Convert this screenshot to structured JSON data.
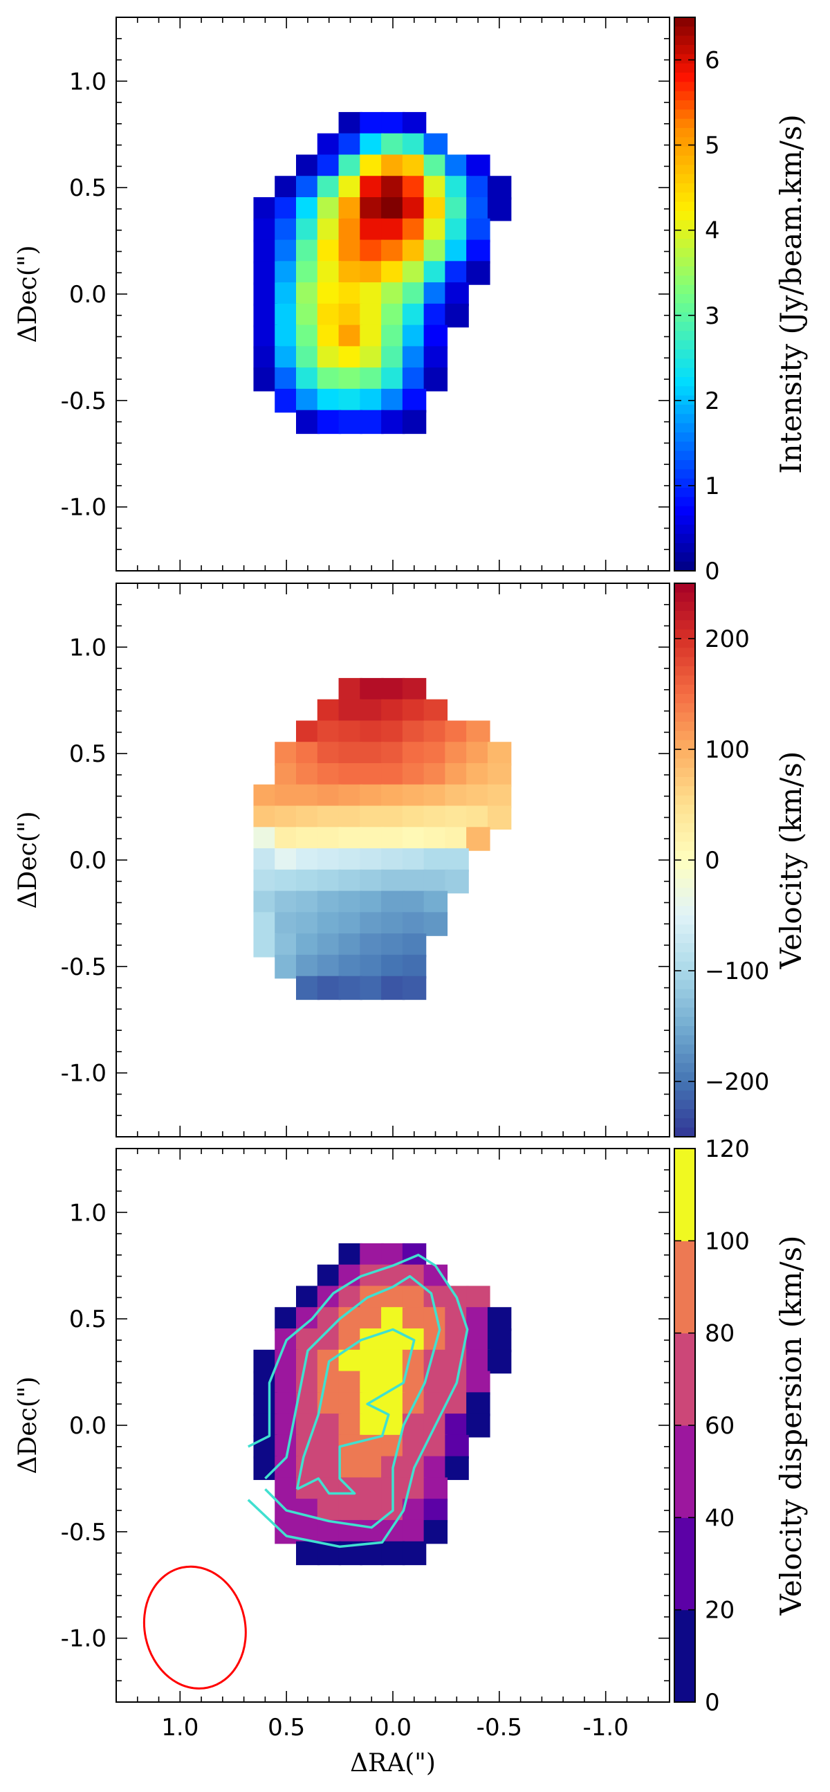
{
  "chart_data": {
    "type": "heatmap",
    "shared_x_axis": {
      "label": "ΔRA(\")",
      "xlim": [
        1.3,
        -1.3
      ],
      "ticks": [
        1.0,
        0.5,
        0.0,
        -0.5,
        -1.0
      ],
      "tick_labels": [
        "1.0",
        "0.5",
        "0.0",
        "-0.5",
        "-1.0"
      ]
    },
    "pixel_grid": {
      "columns_ra": [
        0.6,
        0.5,
        0.4,
        0.3,
        0.2,
        0.1,
        0.0,
        -0.1,
        -0.2,
        -0.3,
        -0.4,
        -0.5
      ],
      "rows_dec": [
        0.8,
        0.7,
        0.6,
        0.5,
        0.4,
        0.3,
        0.2,
        0.1,
        0.0,
        -0.1,
        -0.2,
        -0.3,
        -0.4,
        -0.5,
        -0.6,
        -0.7
      ],
      "cell_size_arcsec": 0.11
    },
    "panels": [
      {
        "name": "intensity",
        "ylabel": "ΔDec(\")",
        "ylim": [
          -1.3,
          1.3
        ],
        "yticks": [
          1.0,
          0.5,
          0.0,
          -0.5,
          -1.0
        ],
        "ytick_labels": [
          "1.0",
          "0.5",
          "0.0",
          "-0.5",
          "-1.0"
        ],
        "colorbar_label": "Intensity (Jy/beam.km/s)",
        "vmin": 0,
        "vmax": 6.5,
        "colorbar_ticks": [
          0,
          1,
          2,
          3,
          4,
          5,
          6
        ],
        "colorbar_tick_labels": [
          "0",
          "1",
          "2",
          "3",
          "4",
          "5",
          "6"
        ],
        "colormap": "jet",
        "values": [
          [
            null,
            null,
            null,
            null,
            0.3,
            0.8,
            0.8,
            0.5,
            null,
            null,
            null,
            null
          ],
          [
            null,
            null,
            null,
            0.5,
            1.1,
            2.2,
            2.9,
            2.6,
            1.4,
            null,
            null,
            null
          ],
          [
            null,
            null,
            0.3,
            1.0,
            2.8,
            4.3,
            4.9,
            4.6,
            3.0,
            1.5,
            0.6,
            null
          ],
          [
            null,
            0.3,
            1.3,
            2.8,
            4.1,
            5.9,
            6.3,
            5.6,
            4.0,
            2.5,
            1.2,
            0.3
          ],
          [
            0.4,
            1.0,
            2.2,
            3.7,
            5.0,
            6.3,
            6.5,
            6.0,
            4.5,
            2.8,
            1.3,
            0.3
          ],
          [
            0.5,
            1.3,
            2.6,
            4.0,
            5.2,
            5.9,
            5.9,
            5.4,
            4.0,
            2.5,
            1.2,
            null
          ],
          [
            0.5,
            1.5,
            3.0,
            4.3,
            5.2,
            5.5,
            5.3,
            4.7,
            3.5,
            2.1,
            0.8,
            null
          ],
          [
            0.5,
            1.8,
            3.2,
            4.1,
            4.8,
            4.9,
            4.4,
            3.7,
            2.5,
            1.0,
            0.3,
            null
          ],
          [
            0.5,
            2.0,
            3.5,
            4.2,
            4.4,
            4.1,
            3.6,
            3.0,
            1.5,
            0.5,
            null,
            null
          ],
          [
            0.5,
            2.1,
            3.4,
            4.4,
            4.6,
            4.1,
            3.3,
            2.4,
            0.9,
            0.3,
            null,
            null
          ],
          [
            0.5,
            2.1,
            3.2,
            4.3,
            5.0,
            4.1,
            3.1,
            2.0,
            0.7,
            null,
            null,
            null
          ],
          [
            0.4,
            1.9,
            3.0,
            4.0,
            4.2,
            3.9,
            2.9,
            1.6,
            0.5,
            null,
            null,
            null
          ],
          [
            0.3,
            1.4,
            2.5,
            3.2,
            3.3,
            3.1,
            2.5,
            1.3,
            0.3,
            null,
            null,
            null
          ],
          [
            null,
            0.9,
            1.7,
            2.2,
            2.3,
            2.1,
            1.6,
            0.8,
            null,
            null,
            null,
            null
          ],
          [
            null,
            null,
            0.4,
            0.8,
            0.9,
            0.9,
            0.5,
            0.3,
            null,
            null,
            null,
            null
          ],
          [
            null,
            null,
            null,
            null,
            null,
            null,
            null,
            null,
            null,
            null,
            null,
            null
          ]
        ]
      },
      {
        "name": "velocity",
        "ylabel": "ΔDec(\")",
        "ylim": [
          -1.3,
          1.3
        ],
        "yticks": [
          1.0,
          0.5,
          0.0,
          -0.5,
          -1.0
        ],
        "ytick_labels": [
          "1.0",
          "0.5",
          "0.0",
          "-0.5",
          "-1.0"
        ],
        "colorbar_label": "Velocity (km/s)",
        "vmin": -250,
        "vmax": 250,
        "colorbar_ticks": [
          200,
          100,
          0,
          -100,
          -200
        ],
        "colorbar_tick_labels": [
          "200",
          "100",
          "0",
          "−100",
          "−200"
        ],
        "colormap": "RdYlBu_r",
        "values": [
          [
            null,
            null,
            null,
            null,
            215,
            235,
            235,
            225,
            null,
            null,
            null,
            null
          ],
          [
            null,
            null,
            null,
            200,
            215,
            215,
            205,
            195,
            185,
            null,
            null,
            null
          ],
          [
            null,
            null,
            195,
            180,
            185,
            190,
            185,
            170,
            160,
            145,
            125,
            null
          ],
          [
            null,
            130,
            145,
            165,
            170,
            170,
            165,
            150,
            145,
            125,
            110,
            90
          ],
          [
            null,
            120,
            135,
            145,
            150,
            150,
            150,
            140,
            130,
            110,
            95,
            85
          ],
          [
            105,
            110,
            110,
            115,
            110,
            105,
            100,
            95,
            90,
            80,
            75,
            70
          ],
          [
            75,
            70,
            65,
            60,
            60,
            55,
            55,
            50,
            45,
            40,
            45,
            60
          ],
          [
            -30,
            25,
            20,
            20,
            15,
            15,
            15,
            10,
            15,
            20,
            90,
            null
          ],
          [
            -75,
            -45,
            -60,
            -65,
            -70,
            -75,
            -80,
            -85,
            -95,
            -95,
            null,
            null
          ],
          [
            -90,
            -95,
            -100,
            -105,
            -110,
            -115,
            -120,
            -120,
            -120,
            -115,
            null,
            null
          ],
          [
            -110,
            -125,
            -130,
            -140,
            -145,
            -150,
            -160,
            -160,
            -150,
            null,
            null,
            null
          ],
          [
            -95,
            -135,
            -140,
            -150,
            -155,
            -165,
            -170,
            -175,
            -170,
            null,
            null,
            null
          ],
          [
            -95,
            -130,
            -150,
            -160,
            -170,
            -180,
            -185,
            -190,
            null,
            null,
            null,
            null
          ],
          [
            null,
            -140,
            -165,
            -175,
            -185,
            -190,
            -200,
            -205,
            null,
            null,
            null,
            null
          ],
          [
            null,
            null,
            -210,
            -220,
            -215,
            -210,
            -225,
            -220,
            null,
            null,
            null,
            null
          ],
          [
            null,
            null,
            null,
            null,
            null,
            null,
            null,
            null,
            null,
            null,
            null,
            null
          ]
        ]
      },
      {
        "name": "velocity-dispersion",
        "ylabel": "ΔDec(\")",
        "ylim": [
          -1.3,
          1.3
        ],
        "yticks": [
          1.0,
          0.5,
          0.0,
          -0.5,
          -1.0
        ],
        "ytick_labels": [
          "1.0",
          "0.5",
          "0.0",
          "-0.5",
          "-1.0"
        ],
        "colorbar_label": "Velocity dispersion (km/s)",
        "vmin": 0,
        "vmax": 120,
        "colorbar_ticks": [
          0,
          20,
          40,
          60,
          80,
          100,
          120
        ],
        "colorbar_tick_labels": [
          "0",
          "20",
          "40",
          "60",
          "80",
          "100",
          "120"
        ],
        "colormap": "plasma (discrete, 6 levels)",
        "values": [
          [
            null,
            null,
            null,
            null,
            10,
            50,
            50,
            30,
            null,
            null,
            null,
            null
          ],
          [
            null,
            null,
            null,
            10,
            50,
            70,
            70,
            70,
            50,
            null,
            null,
            null
          ],
          [
            null,
            null,
            10,
            50,
            70,
            90,
            90,
            90,
            70,
            70,
            70,
            null
          ],
          [
            null,
            10,
            50,
            70,
            90,
            90,
            110,
            90,
            90,
            70,
            50,
            10
          ],
          [
            null,
            50,
            70,
            70,
            90,
            110,
            110,
            110,
            90,
            70,
            50,
            10
          ],
          [
            10,
            50,
            70,
            90,
            110,
            110,
            110,
            90,
            70,
            70,
            50,
            10
          ],
          [
            10,
            50,
            70,
            90,
            90,
            110,
            110,
            90,
            70,
            70,
            50,
            null
          ],
          [
            10,
            50,
            70,
            90,
            90,
            110,
            110,
            90,
            70,
            70,
            10,
            null
          ],
          [
            10,
            50,
            70,
            70,
            90,
            110,
            110,
            70,
            70,
            30,
            10,
            null
          ],
          [
            10,
            50,
            70,
            70,
            90,
            90,
            90,
            70,
            70,
            30,
            null,
            null
          ],
          [
            10,
            50,
            70,
            70,
            90,
            90,
            70,
            70,
            50,
            10,
            null,
            null
          ],
          [
            null,
            50,
            70,
            70,
            70,
            70,
            70,
            70,
            50,
            null,
            null,
            null
          ],
          [
            null,
            50,
            50,
            70,
            70,
            70,
            70,
            50,
            30,
            null,
            null,
            null
          ],
          [
            null,
            50,
            50,
            50,
            50,
            50,
            50,
            50,
            10,
            null,
            null,
            null
          ],
          [
            null,
            null,
            10,
            10,
            10,
            10,
            10,
            10,
            null,
            null,
            null,
            null
          ],
          [
            null,
            null,
            null,
            null,
            null,
            null,
            null,
            null,
            null,
            null,
            null,
            null
          ]
        ],
        "contours": [
          [
            [
              0.68,
              -0.1
            ],
            [
              0.58,
              -0.05
            ],
            [
              0.58,
              0.2
            ],
            [
              0.5,
              0.4
            ],
            [
              0.38,
              0.5
            ],
            [
              0.28,
              0.62
            ],
            [
              0.15,
              0.7
            ],
            [
              0.0,
              0.75
            ],
            [
              -0.12,
              0.8
            ],
            [
              -0.2,
              0.75
            ],
            [
              -0.3,
              0.6
            ],
            [
              -0.35,
              0.45
            ],
            [
              -0.3,
              0.2
            ],
            [
              -0.2,
              0.0
            ],
            [
              -0.1,
              -0.2
            ],
            [
              -0.05,
              -0.4
            ],
            [
              0.05,
              -0.55
            ],
            [
              0.25,
              -0.57
            ],
            [
              0.5,
              -0.52
            ],
            [
              0.68,
              -0.35
            ]
          ],
          [
            [
              0.6,
              -0.25
            ],
            [
              0.5,
              -0.15
            ],
            [
              0.45,
              0.1
            ],
            [
              0.4,
              0.35
            ],
            [
              0.25,
              0.5
            ],
            [
              0.12,
              0.6
            ],
            [
              0.0,
              0.65
            ],
            [
              -0.08,
              0.7
            ],
            [
              -0.18,
              0.62
            ],
            [
              -0.22,
              0.45
            ],
            [
              -0.15,
              0.2
            ],
            [
              -0.05,
              0.0
            ],
            [
              0.0,
              -0.2
            ],
            [
              0.0,
              -0.4
            ],
            [
              0.1,
              -0.48
            ],
            [
              0.3,
              -0.45
            ],
            [
              0.5,
              -0.4
            ],
            [
              0.6,
              -0.3
            ]
          ],
          [
            [
              0.45,
              -0.3
            ],
            [
              0.42,
              -0.15
            ],
            [
              0.35,
              0.05
            ],
            [
              0.3,
              0.3
            ],
            [
              0.15,
              0.4
            ],
            [
              0.0,
              0.45
            ],
            [
              -0.1,
              0.4
            ],
            [
              -0.05,
              0.2
            ],
            [
              0.12,
              0.1
            ],
            [
              0.02,
              0.05
            ],
            [
              0.05,
              -0.05
            ],
            [
              0.25,
              -0.1
            ],
            [
              0.25,
              -0.25
            ],
            [
              0.18,
              -0.32
            ],
            [
              0.3,
              -0.32
            ],
            [
              0.35,
              -0.25
            ],
            [
              0.45,
              -0.3
            ]
          ]
        ],
        "beam": {
          "center_ra": 0.93,
          "center_dec": -0.95,
          "major_arcsec": 0.56,
          "minor_arcsec": 0.45,
          "color": "#ff0000"
        }
      }
    ]
  }
}
